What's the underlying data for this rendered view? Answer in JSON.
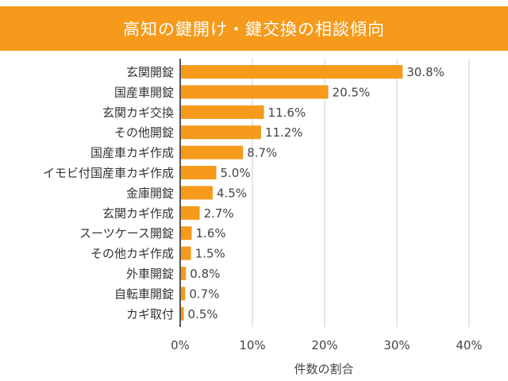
{
  "chart_data": {
    "type": "bar",
    "orientation": "horizontal",
    "title": "高知の鍵開け・鍵交換の相談傾向",
    "xlabel": "件数の割合",
    "ylabel": "",
    "xlim": [
      0,
      40
    ],
    "xticks": [
      "0%",
      "10%",
      "20%",
      "30%",
      "40%"
    ],
    "grid": "vertical",
    "bar_color": "#f59a1b",
    "title_bg_color": "#f59a1b",
    "categories": [
      "玄関開錠",
      "国産車開錠",
      "玄関カギ交換",
      "その他開錠",
      "国産車カギ作成",
      "イモビ付国産車カギ作成",
      "金庫開錠",
      "玄関カギ作成",
      "スーツケース開錠",
      "その他カギ作成",
      "外車開錠",
      "自転車開錠",
      "カギ取付"
    ],
    "values": [
      30.8,
      20.5,
      11.6,
      11.2,
      8.7,
      5.0,
      4.5,
      2.7,
      1.6,
      1.5,
      0.8,
      0.7,
      0.5
    ],
    "data_labels": [
      "30.8%",
      "20.5%",
      "11.6%",
      "11.2%",
      "8.7%",
      "5.0%",
      "4.5%",
      "2.7%",
      "1.6%",
      "1.5%",
      "0.8%",
      "0.7%",
      "0.5%"
    ]
  }
}
